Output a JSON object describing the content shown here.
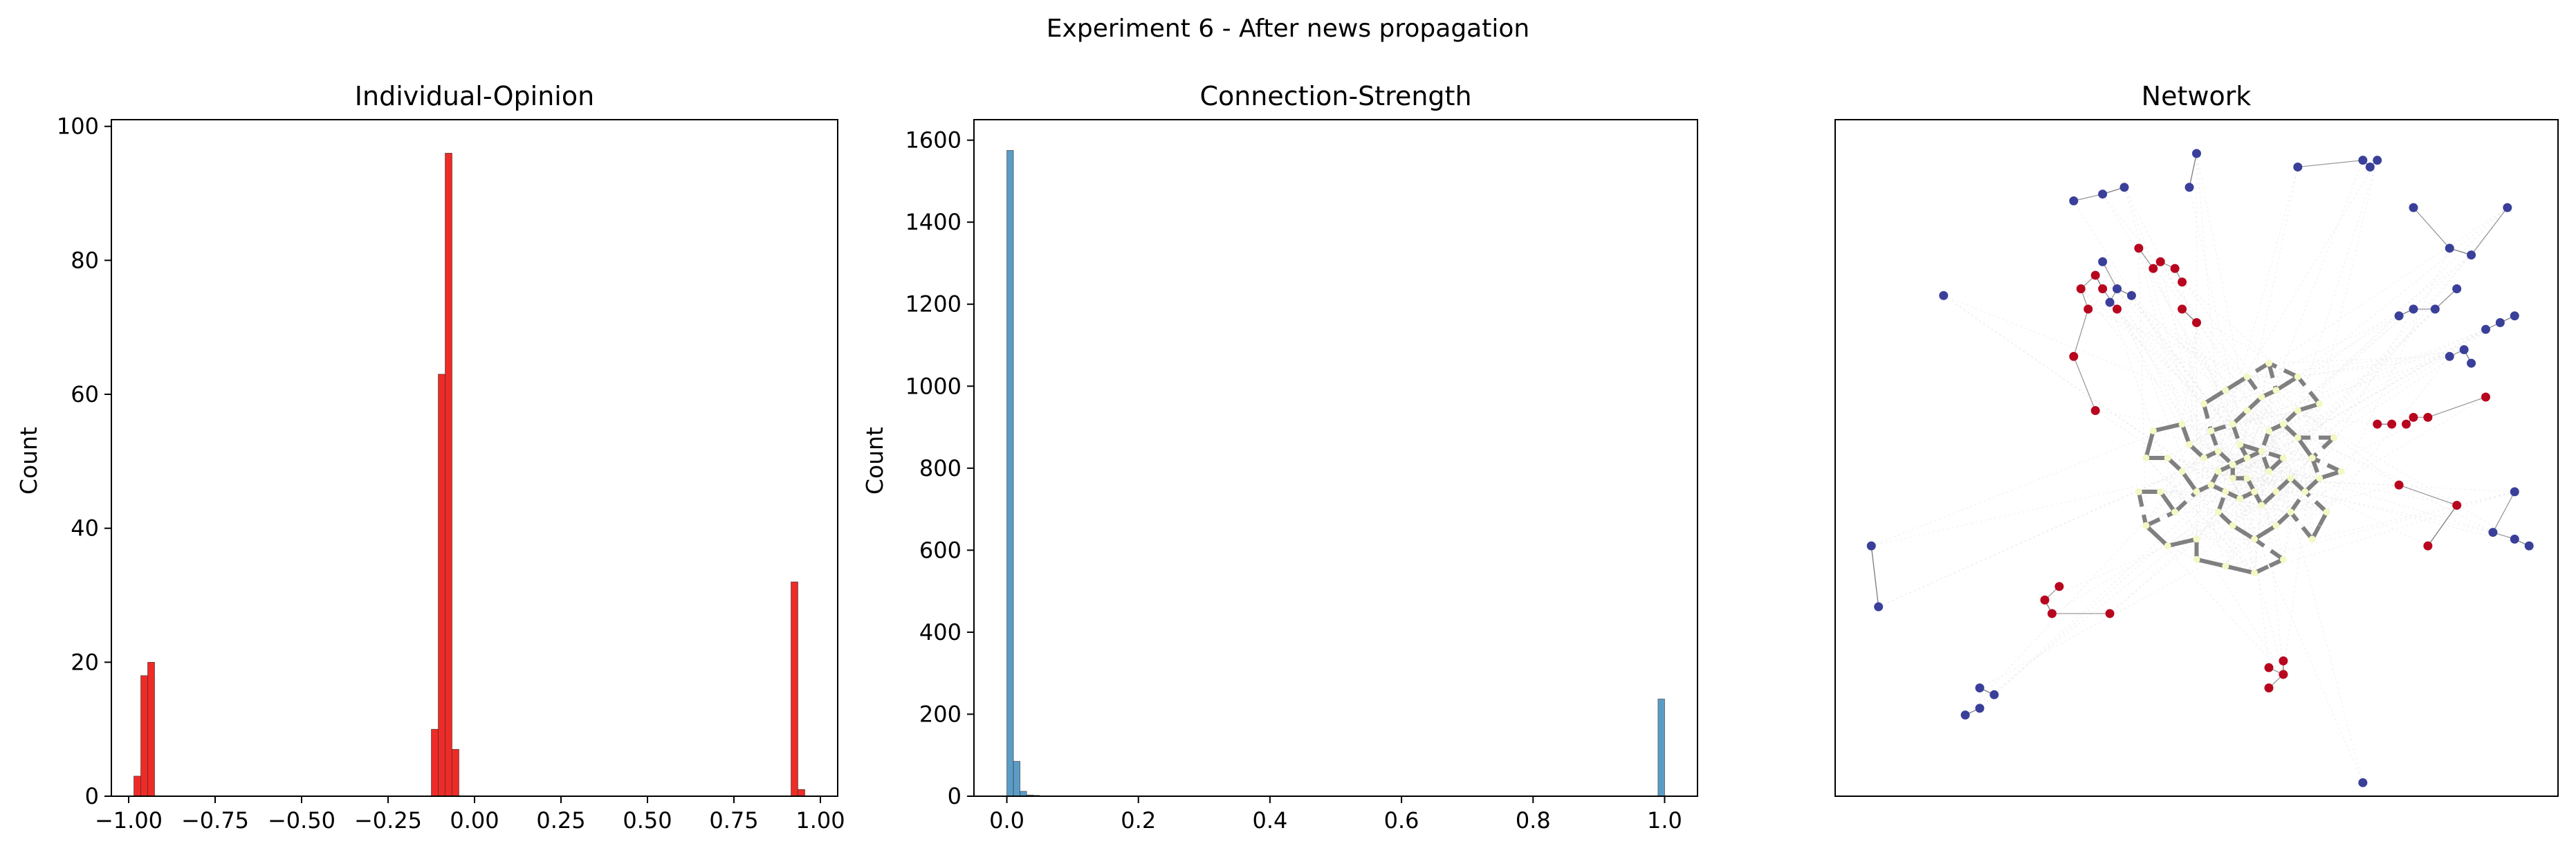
{
  "figure": {
    "suptitle": "Experiment 6 - After news propagation"
  },
  "chart_data": [
    {
      "type": "bar",
      "title": "Individual-Opinion",
      "xlabel": "",
      "ylabel": "Count",
      "xlim": [
        -1.05,
        1.05
      ],
      "ylim": [
        0,
        101
      ],
      "xticks": [
        "-1.00",
        "-0.75",
        "-0.50",
        "-0.25",
        "0.00",
        "0.25",
        "0.50",
        "0.75",
        "1.00"
      ],
      "yticks": [
        "0",
        "20",
        "40",
        "60",
        "80",
        "100"
      ],
      "grid": false,
      "color": "#ee2b27",
      "bins": [
        {
          "x0": -0.985,
          "x1": -0.965,
          "count": 3
        },
        {
          "x0": -0.965,
          "x1": -0.945,
          "count": 18
        },
        {
          "x0": -0.945,
          "x1": -0.925,
          "count": 20
        },
        {
          "x0": -0.125,
          "x1": -0.105,
          "count": 10
        },
        {
          "x0": -0.105,
          "x1": -0.085,
          "count": 63
        },
        {
          "x0": -0.085,
          "x1": -0.065,
          "count": 96
        },
        {
          "x0": -0.065,
          "x1": -0.045,
          "count": 7
        },
        {
          "x0": 0.915,
          "x1": 0.935,
          "count": 32
        },
        {
          "x0": 0.935,
          "x1": 0.955,
          "count": 1
        }
      ]
    },
    {
      "type": "bar",
      "title": "Connection-Strength",
      "xlabel": "",
      "ylabel": "Count",
      "xlim": [
        -0.05,
        1.05
      ],
      "ylim": [
        0,
        1650
      ],
      "xticks": [
        "0.0",
        "0.2",
        "0.4",
        "0.6",
        "0.8",
        "1.0"
      ],
      "yticks": [
        "0",
        "200",
        "400",
        "600",
        "800",
        "1000",
        "1200",
        "1400",
        "1600"
      ],
      "grid": false,
      "color": "#5b9cc7",
      "bins": [
        {
          "x0": 0.0,
          "x1": 0.01,
          "count": 1575
        },
        {
          "x0": 0.01,
          "x1": 0.02,
          "count": 85
        },
        {
          "x0": 0.02,
          "x1": 0.03,
          "count": 12
        },
        {
          "x0": 0.03,
          "x1": 0.04,
          "count": 3
        },
        {
          "x0": 0.04,
          "x1": 0.05,
          "count": 2
        },
        {
          "x0": 0.05,
          "x1": 0.06,
          "count": 1
        },
        {
          "x0": 0.99,
          "x1": 1.0,
          "count": 237
        }
      ]
    },
    {
      "type": "scatter",
      "title": "Network",
      "xlabel": "",
      "ylabel": "",
      "grid": false,
      "colors": {
        "blue": "#3a3f9a",
        "red": "#b8061f",
        "yellow": "#f4f8c4",
        "strong_edge": "#808080",
        "thin_edge": "#777777",
        "faint_edge": "#e6e6e6"
      },
      "blue_nodes": [
        [
          0.5,
          0.05
        ],
        [
          0.4,
          0.1
        ],
        [
          0.33,
          0.12
        ],
        [
          0.37,
          0.11
        ],
        [
          0.49,
          0.1
        ],
        [
          0.64,
          0.07
        ],
        [
          0.73,
          0.06
        ],
        [
          0.74,
          0.07
        ],
        [
          0.75,
          0.06
        ],
        [
          0.93,
          0.13
        ],
        [
          0.8,
          0.13
        ],
        [
          0.85,
          0.19
        ],
        [
          0.88,
          0.2
        ],
        [
          0.86,
          0.25
        ],
        [
          0.9,
          0.31
        ],
        [
          0.92,
          0.3
        ],
        [
          0.94,
          0.29
        ],
        [
          0.87,
          0.34
        ],
        [
          0.88,
          0.36
        ],
        [
          0.85,
          0.35
        ],
        [
          0.78,
          0.29
        ],
        [
          0.8,
          0.28
        ],
        [
          0.83,
          0.28
        ],
        [
          0.37,
          0.21
        ],
        [
          0.39,
          0.25
        ],
        [
          0.41,
          0.26
        ],
        [
          0.38,
          0.27
        ],
        [
          0.15,
          0.26
        ],
        [
          0.05,
          0.63
        ],
        [
          0.06,
          0.72
        ],
        [
          0.2,
          0.84
        ],
        [
          0.22,
          0.85
        ],
        [
          0.2,
          0.87
        ],
        [
          0.18,
          0.88
        ],
        [
          0.91,
          0.61
        ],
        [
          0.94,
          0.62
        ],
        [
          0.96,
          0.63
        ],
        [
          0.94,
          0.55
        ],
        [
          0.73,
          0.98
        ]
      ],
      "red_nodes": [
        [
          0.42,
          0.19
        ],
        [
          0.44,
          0.22
        ],
        [
          0.45,
          0.21
        ],
        [
          0.47,
          0.22
        ],
        [
          0.48,
          0.24
        ],
        [
          0.36,
          0.23
        ],
        [
          0.37,
          0.25
        ],
        [
          0.39,
          0.28
        ],
        [
          0.35,
          0.28
        ],
        [
          0.34,
          0.25
        ],
        [
          0.33,
          0.35
        ],
        [
          0.48,
          0.28
        ],
        [
          0.5,
          0.3
        ],
        [
          0.36,
          0.43
        ],
        [
          0.75,
          0.45
        ],
        [
          0.77,
          0.45
        ],
        [
          0.79,
          0.45
        ],
        [
          0.8,
          0.44
        ],
        [
          0.82,
          0.44
        ],
        [
          0.9,
          0.41
        ],
        [
          0.78,
          0.54
        ],
        [
          0.86,
          0.57
        ],
        [
          0.82,
          0.63
        ],
        [
          0.29,
          0.71
        ],
        [
          0.3,
          0.73
        ],
        [
          0.31,
          0.69
        ],
        [
          0.38,
          0.73
        ],
        [
          0.6,
          0.81
        ],
        [
          0.62,
          0.82
        ],
        [
          0.62,
          0.8
        ],
        [
          0.6,
          0.84
        ]
      ],
      "yellow_nodes": [
        [
          0.52,
          0.46
        ],
        [
          0.55,
          0.45
        ],
        [
          0.57,
          0.43
        ],
        [
          0.59,
          0.41
        ],
        [
          0.61,
          0.4
        ],
        [
          0.62,
          0.45
        ],
        [
          0.64,
          0.47
        ],
        [
          0.66,
          0.5
        ],
        [
          0.67,
          0.53
        ],
        [
          0.65,
          0.55
        ],
        [
          0.63,
          0.58
        ],
        [
          0.61,
          0.6
        ],
        [
          0.58,
          0.62
        ],
        [
          0.55,
          0.6
        ],
        [
          0.53,
          0.58
        ],
        [
          0.5,
          0.55
        ],
        [
          0.48,
          0.52
        ],
        [
          0.49,
          0.48
        ],
        [
          0.51,
          0.5
        ],
        [
          0.53,
          0.52
        ],
        [
          0.55,
          0.51
        ],
        [
          0.57,
          0.5
        ],
        [
          0.59,
          0.49
        ],
        [
          0.6,
          0.52
        ],
        [
          0.58,
          0.55
        ],
        [
          0.56,
          0.56
        ],
        [
          0.54,
          0.55
        ],
        [
          0.52,
          0.54
        ],
        [
          0.56,
          0.48
        ],
        [
          0.6,
          0.46
        ],
        [
          0.62,
          0.5
        ],
        [
          0.63,
          0.53
        ],
        [
          0.5,
          0.62
        ],
        [
          0.47,
          0.58
        ],
        [
          0.45,
          0.55
        ],
        [
          0.46,
          0.5
        ],
        [
          0.48,
          0.45
        ],
        [
          0.51,
          0.42
        ],
        [
          0.54,
          0.4
        ],
        [
          0.57,
          0.38
        ],
        [
          0.6,
          0.36
        ],
        [
          0.64,
          0.38
        ],
        [
          0.67,
          0.42
        ],
        [
          0.69,
          0.47
        ],
        [
          0.7,
          0.52
        ],
        [
          0.68,
          0.58
        ],
        [
          0.66,
          0.62
        ],
        [
          0.62,
          0.65
        ],
        [
          0.58,
          0.67
        ],
        [
          0.54,
          0.66
        ],
        [
          0.5,
          0.65
        ],
        [
          0.46,
          0.63
        ],
        [
          0.43,
          0.6
        ],
        [
          0.42,
          0.55
        ],
        [
          0.43,
          0.5
        ],
        [
          0.44,
          0.46
        ],
        [
          0.57,
          0.53
        ],
        [
          0.59,
          0.57
        ],
        [
          0.53,
          0.49
        ],
        [
          0.61,
          0.55
        ],
        [
          0.55,
          0.53
        ],
        [
          0.64,
          0.43
        ]
      ]
    }
  ]
}
